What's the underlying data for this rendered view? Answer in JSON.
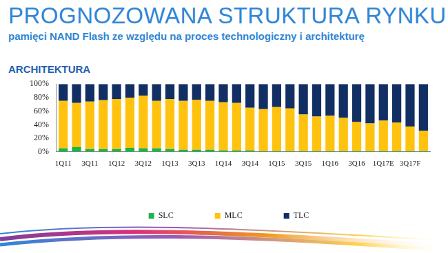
{
  "chart_data": {
    "type": "bar",
    "title": "PROGNOZOWANA STRUKTURA RYNKU",
    "subtitle": "pamięci NAND Flash ze względu na proces technologiczny i architekturę",
    "annotations": [
      "ARCHITEKTURA"
    ],
    "categories": [
      "1Q11",
      null,
      "3Q11",
      null,
      "1Q12",
      null,
      "3Q12",
      null,
      "1Q13",
      null,
      "3Q13",
      null,
      "1Q14",
      null,
      "3Q14",
      null,
      "1Q15",
      null,
      "3Q15",
      null,
      "1Q16",
      null,
      "3Q16",
      null,
      "1Q17E",
      null,
      "3Q17F",
      null
    ],
    "series": [
      {
        "name": "SLC",
        "color": "#1fb14b",
        "values": [
          5,
          7,
          4,
          4,
          4,
          6,
          5,
          5,
          4,
          3,
          3,
          3,
          2,
          2,
          2,
          1,
          1,
          1,
          1,
          1,
          1,
          1,
          1,
          1,
          1,
          1,
          1,
          1
        ]
      },
      {
        "name": "MLC",
        "color": "#ffc20e",
        "values": [
          70,
          65,
          70,
          72,
          74,
          74,
          78,
          70,
          74,
          72,
          74,
          72,
          71,
          70,
          63,
          62,
          65,
          63,
          54,
          51,
          52,
          49,
          43,
          41,
          45,
          42,
          36,
          30
        ]
      },
      {
        "name": "TLC",
        "color": "#122f63",
        "values": [
          25,
          28,
          26,
          24,
          22,
          20,
          17,
          25,
          22,
          25,
          23,
          25,
          27,
          28,
          35,
          37,
          34,
          36,
          45,
          48,
          47,
          50,
          56,
          58,
          54,
          57,
          63,
          69
        ]
      }
    ],
    "stacked": true,
    "ylim": [
      0,
      100
    ],
    "yticks": [
      {
        "value": 0,
        "label": "0%"
      },
      {
        "value": 20,
        "label": "20%"
      },
      {
        "value": 40,
        "label": "40%"
      },
      {
        "value": 60,
        "label": "60%"
      },
      {
        "value": 80,
        "label": "80%"
      },
      {
        "value": 100,
        "label": "100%"
      }
    ],
    "grid": false,
    "legend": "bottom"
  }
}
